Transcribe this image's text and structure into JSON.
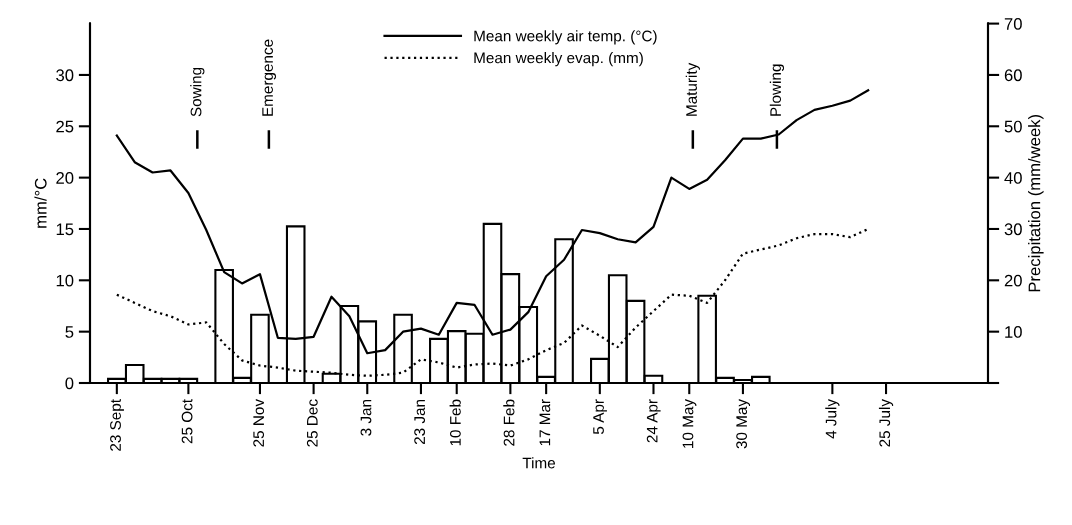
{
  "chart_data": {
    "type": "bar",
    "xlabel": "Time",
    "ylabel": "mm/°C",
    "y2label": "Precipitation (mm/week)",
    "categories": [
      "23 Sept",
      null,
      null,
      null,
      "25 Oct",
      null,
      null,
      null,
      "25 Nov",
      null,
      null,
      "25 Dec",
      null,
      null,
      "3 Jan",
      null,
      null,
      "23 Jan",
      null,
      "10 Feb",
      null,
      null,
      "28 Feb",
      null,
      "17 Mar",
      null,
      null,
      "5 Apr",
      null,
      null,
      "24 Apr",
      null,
      "10 May",
      null,
      null,
      "30 May",
      null,
      null,
      null,
      null,
      "4 July",
      null,
      null,
      "25 July",
      null,
      null,
      null,
      null,
      null
    ],
    "ylim": [
      0,
      35
    ],
    "yticks": [
      0,
      5,
      10,
      15,
      20,
      25,
      30
    ],
    "y2lim": [
      0,
      70
    ],
    "y2ticks": [
      {
        "value": 0,
        "label": null
      },
      10,
      20,
      30,
      40,
      50,
      60,
      70
    ],
    "grid": false,
    "legend": "top",
    "series": [
      {
        "axis": "y2",
        "color": "#ffffff",
        "values": [
          0.8,
          3.5,
          0.8,
          0.8,
          0.8,
          null,
          22,
          1,
          13.3,
          null,
          30.5,
          null,
          1.8,
          15,
          12,
          null,
          13.3,
          null,
          8.6,
          10.1,
          9.6,
          31,
          21.2,
          14.8,
          1.2,
          28,
          null,
          4.7,
          21,
          16,
          1.4,
          null,
          null,
          17,
          1.0,
          0.6,
          1.2,
          null,
          null,
          null,
          null,
          null,
          null,
          null,
          null,
          null,
          null,
          null,
          null
        ]
      },
      {
        "type": "line",
        "name": "Mean weekly air temp. (°C)",
        "color": "#000000",
        "line_style": "solid",
        "values": [
          24.1,
          21.5,
          20.5,
          20.7,
          18.5,
          14.9,
          10.8,
          9.7,
          10.6,
          4.4,
          4.3,
          4.5,
          8.4,
          6.5,
          2.9,
          3.2,
          5.0,
          5.3,
          4.7,
          7.8,
          7.6,
          4.7,
          5.2,
          6.9,
          10.4,
          12.0,
          14.9,
          14.6,
          14.0,
          13.7,
          15.2,
          20.0,
          18.9,
          19.8,
          21.7,
          23.8,
          23.8,
          24.2,
          25.6,
          26.6,
          27.0,
          27.5,
          28.5,
          null,
          null,
          null,
          null,
          null,
          null
        ]
      },
      {
        "type": "line",
        "name": "Mean weekly evap. (mm)",
        "color": "#000000",
        "line_style": "dotted",
        "values": [
          8.6,
          7.8,
          7.0,
          6.5,
          5.7,
          5.9,
          3.8,
          2.2,
          1.7,
          1.5,
          1.2,
          1.1,
          1.0,
          0.8,
          0.7,
          0.8,
          1.0,
          2.3,
          2.0,
          1.5,
          1.8,
          1.9,
          1.7,
          2.3,
          3.2,
          3.9,
          5.6,
          4.6,
          3.5,
          5.4,
          7.0,
          8.6,
          8.5,
          7.8,
          10.0,
          12.6,
          13.0,
          13.4,
          14.1,
          14.5,
          14.5,
          14.2,
          15.0,
          null,
          null,
          null,
          null,
          null,
          null
        ]
      }
    ],
    "annotations": [
      "Sowing",
      "Emergence",
      "Maturity",
      "Plowing"
    ]
  }
}
